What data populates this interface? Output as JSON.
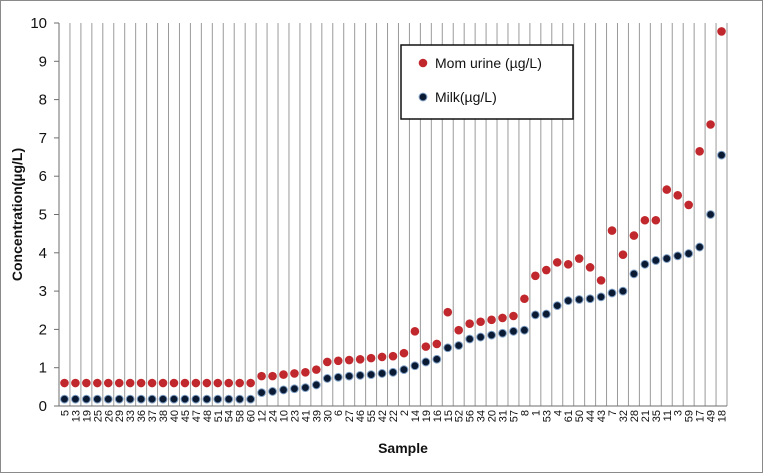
{
  "chart_data": {
    "type": "scatter",
    "xlabel": "Sample",
    "ylabel": "Concentration(µg/L)",
    "ylim": [
      0,
      10
    ],
    "yticks": [
      "0",
      "1",
      "2",
      "3",
      "4",
      "5",
      "6",
      "7",
      "8",
      "9",
      "10"
    ],
    "grid": "vertical",
    "legend_position": "top-right",
    "categories": [
      "5",
      "13",
      "19",
      "25",
      "26",
      "29",
      "33",
      "36",
      "37",
      "38",
      "40",
      "45",
      "47",
      "48",
      "51",
      "54",
      "58",
      "60",
      "12",
      "24",
      "10",
      "23",
      "41",
      "39",
      "30",
      "6",
      "27",
      "46",
      "55",
      "42",
      "22",
      "2",
      "14",
      "19",
      "16",
      "15",
      "52",
      "56",
      "34",
      "20",
      "31",
      "57",
      "8",
      "1",
      "53",
      "4",
      "61",
      "50",
      "44",
      "43",
      "7",
      "32",
      "28",
      "21",
      "35",
      "11",
      "3",
      "59",
      "17",
      "49",
      "18"
    ],
    "series": [
      {
        "name": "Mom urine (µg/L)",
        "color": "#c0282d",
        "values": [
          0.6,
          0.6,
          0.6,
          0.6,
          0.6,
          0.6,
          0.6,
          0.6,
          0.6,
          0.6,
          0.6,
          0.6,
          0.6,
          0.6,
          0.6,
          0.6,
          0.6,
          0.6,
          0.78,
          0.78,
          0.82,
          0.85,
          0.88,
          0.95,
          1.15,
          1.18,
          1.2,
          1.22,
          1.25,
          1.28,
          1.3,
          1.38,
          1.95,
          1.55,
          1.62,
          2.45,
          1.98,
          2.15,
          2.2,
          2.25,
          2.3,
          2.35,
          2.8,
          3.4,
          3.55,
          3.75,
          3.7,
          3.85,
          3.62,
          3.28,
          4.58,
          3.95,
          4.45,
          4.85,
          4.85,
          5.65,
          5.5,
          5.25,
          6.65,
          7.35,
          9.78
        ]
      },
      {
        "name": "Milk(µg/L)",
        "color": "#0b1a33",
        "values": [
          0.18,
          0.18,
          0.18,
          0.18,
          0.18,
          0.18,
          0.18,
          0.18,
          0.18,
          0.18,
          0.18,
          0.18,
          0.18,
          0.18,
          0.18,
          0.18,
          0.18,
          0.18,
          0.35,
          0.38,
          0.42,
          0.45,
          0.48,
          0.55,
          0.72,
          0.75,
          0.78,
          0.8,
          0.82,
          0.85,
          0.88,
          0.95,
          1.05,
          1.15,
          1.22,
          1.52,
          1.58,
          1.75,
          1.8,
          1.85,
          1.9,
          1.95,
          1.98,
          2.38,
          2.4,
          2.62,
          2.75,
          2.78,
          2.8,
          2.85,
          2.95,
          3.0,
          3.45,
          3.7,
          3.8,
          3.85,
          3.92,
          3.98,
          4.15,
          5.0,
          6.55
        ]
      }
    ]
  }
}
